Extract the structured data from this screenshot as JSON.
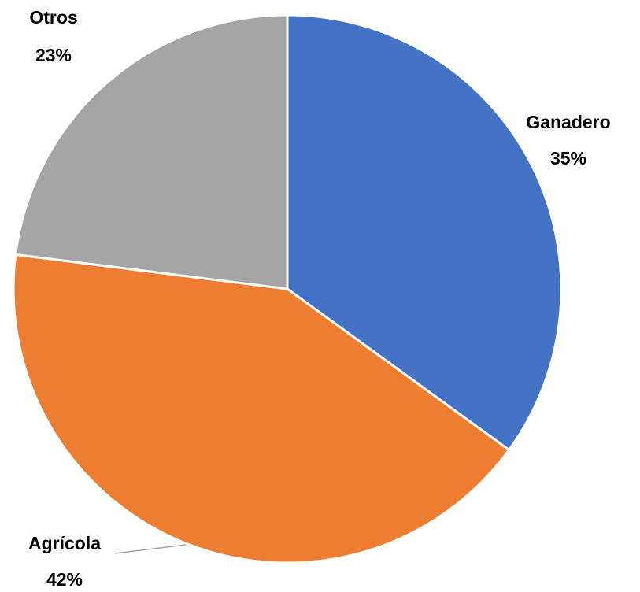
{
  "chart_data": {
    "type": "pie",
    "categories": [
      "Ganadero",
      "Agrícola",
      "Otros"
    ],
    "values": [
      35,
      42,
      23
    ],
    "value_labels": [
      "35%",
      "42%",
      "23%"
    ],
    "colors": [
      "#4472c4",
      "#ed7d31",
      "#a5a5a5"
    ]
  }
}
